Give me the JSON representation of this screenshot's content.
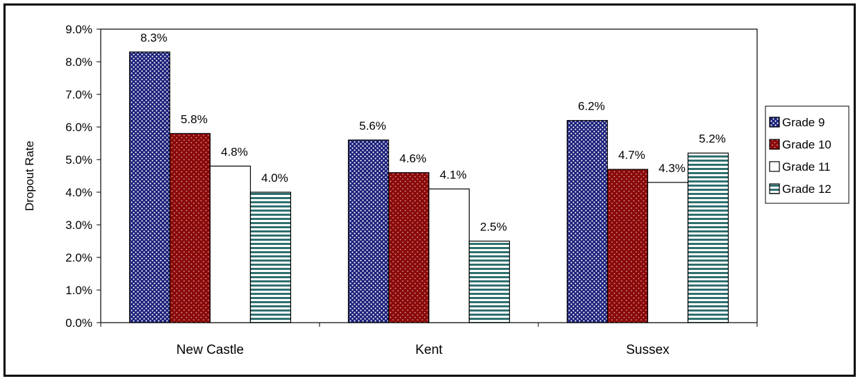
{
  "chart_data": {
    "type": "bar",
    "title": "",
    "xlabel": "",
    "ylabel": "Dropout Rate",
    "ylim": [
      0,
      9.0
    ],
    "ytick_step": 1.0,
    "yticks": [
      "0.0%",
      "1.0%",
      "2.0%",
      "3.0%",
      "4.0%",
      "5.0%",
      "6.0%",
      "7.0%",
      "8.0%",
      "9.0%"
    ],
    "grid": false,
    "legend_position": "right",
    "categories": [
      "New Castle",
      "Kent",
      "Sussex"
    ],
    "series": [
      {
        "name": "Grade 9",
        "values": [
          8.3,
          5.6,
          6.2
        ],
        "labels": [
          "8.3%",
          "5.6%",
          "6.2%"
        ],
        "pattern": "dots-blue"
      },
      {
        "name": "Grade 10",
        "values": [
          5.8,
          4.6,
          4.7
        ],
        "labels": [
          "5.8%",
          "4.6%",
          "4.7%"
        ],
        "pattern": "dots-red"
      },
      {
        "name": "Grade 11",
        "values": [
          4.8,
          4.1,
          4.3
        ],
        "labels": [
          "4.8%",
          "4.1%",
          "4.3%"
        ],
        "pattern": "solid-white"
      },
      {
        "name": "Grade 12",
        "values": [
          4.0,
          2.5,
          5.2
        ],
        "labels": [
          "4.0%",
          "2.5%",
          "5.2%"
        ],
        "pattern": "stripes-teal"
      }
    ],
    "colors": {
      "grade9_fill": "#1a1f7a",
      "grade9_dot": "#ffffff",
      "grade10_fill": "#8b0a0a",
      "grade10_dot": "#e8c8c8",
      "grade11_fill": "#ffffff",
      "grade12_stripe": "#2f6f6f",
      "grade12_bg": "#ffffff"
    }
  }
}
